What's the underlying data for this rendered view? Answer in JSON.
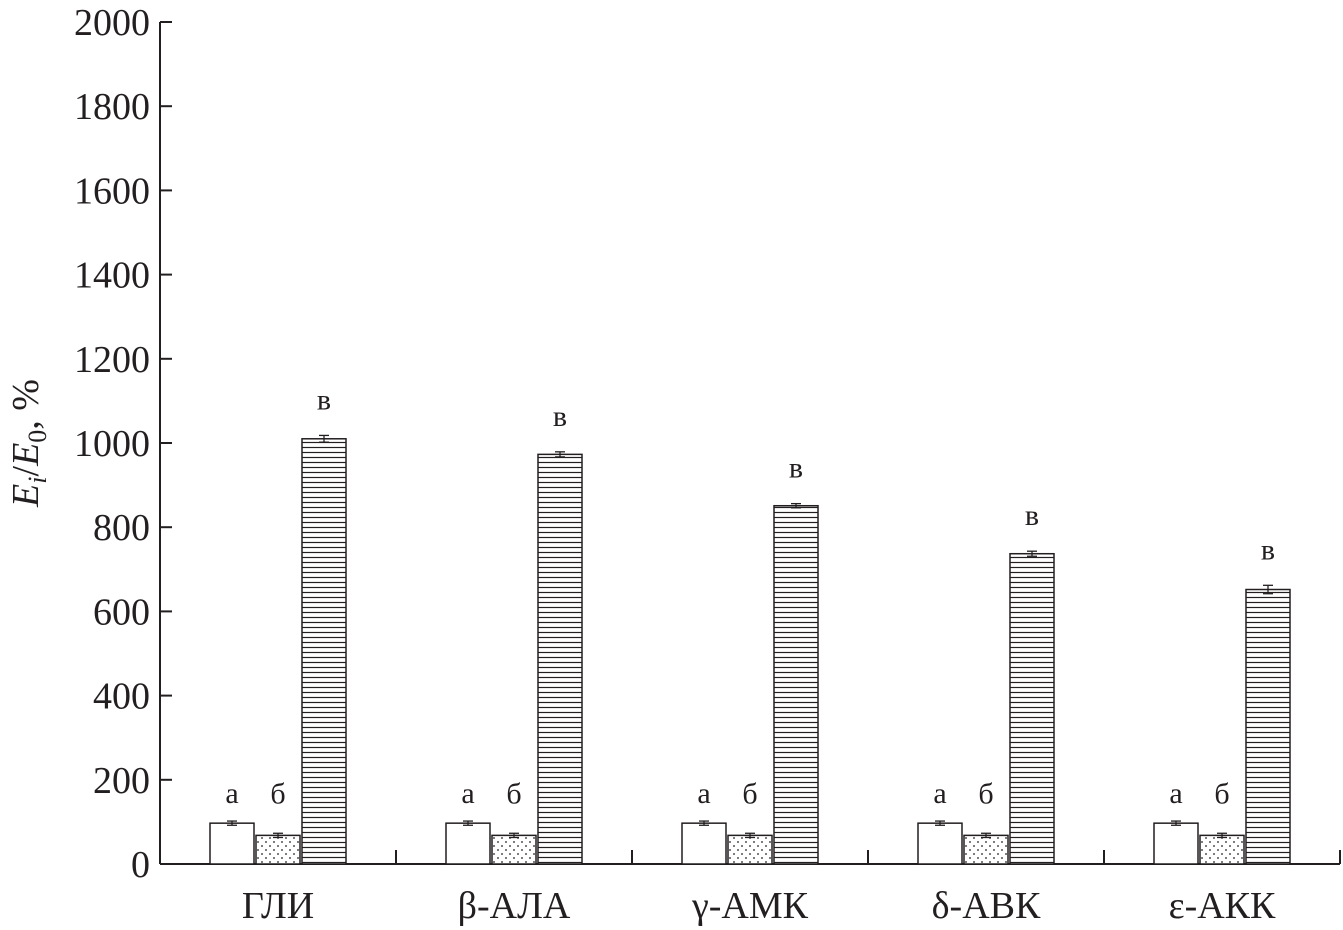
{
  "chart_data": {
    "type": "bar",
    "categories": [
      "ГЛИ",
      "β-АЛА",
      "γ-АМК",
      "δ-АВК",
      "ε-АКК"
    ],
    "series": [
      {
        "name": "а",
        "pattern": "plain",
        "values": [
          97,
          97,
          97,
          97,
          97
        ],
        "errors": [
          5,
          5,
          5,
          5,
          5
        ]
      },
      {
        "name": "б",
        "pattern": "dotted",
        "values": [
          68,
          68,
          68,
          68,
          68
        ],
        "errors": [
          5,
          5,
          5,
          5,
          5
        ]
      },
      {
        "name": "в",
        "pattern": "horizontal-lines",
        "values": [
          1010,
          973,
          851,
          737,
          652
        ],
        "errors": [
          8,
          6,
          5,
          6,
          10
        ]
      }
    ],
    "bar_letters": [
      "а",
      "б",
      "в"
    ],
    "ylabel": {
      "E": "E",
      "i": "i",
      "slash": "/",
      "E0": "E",
      "sub0": "0",
      "unit": ", %"
    },
    "ylim": [
      0,
      2000
    ],
    "yticks": [
      0,
      200,
      400,
      600,
      800,
      1000,
      1200,
      1400,
      1600,
      1800,
      2000
    ],
    "grid": false,
    "legend": "none",
    "colors": {
      "ink": "#231f20",
      "bar_fill": "#ffffff"
    }
  }
}
